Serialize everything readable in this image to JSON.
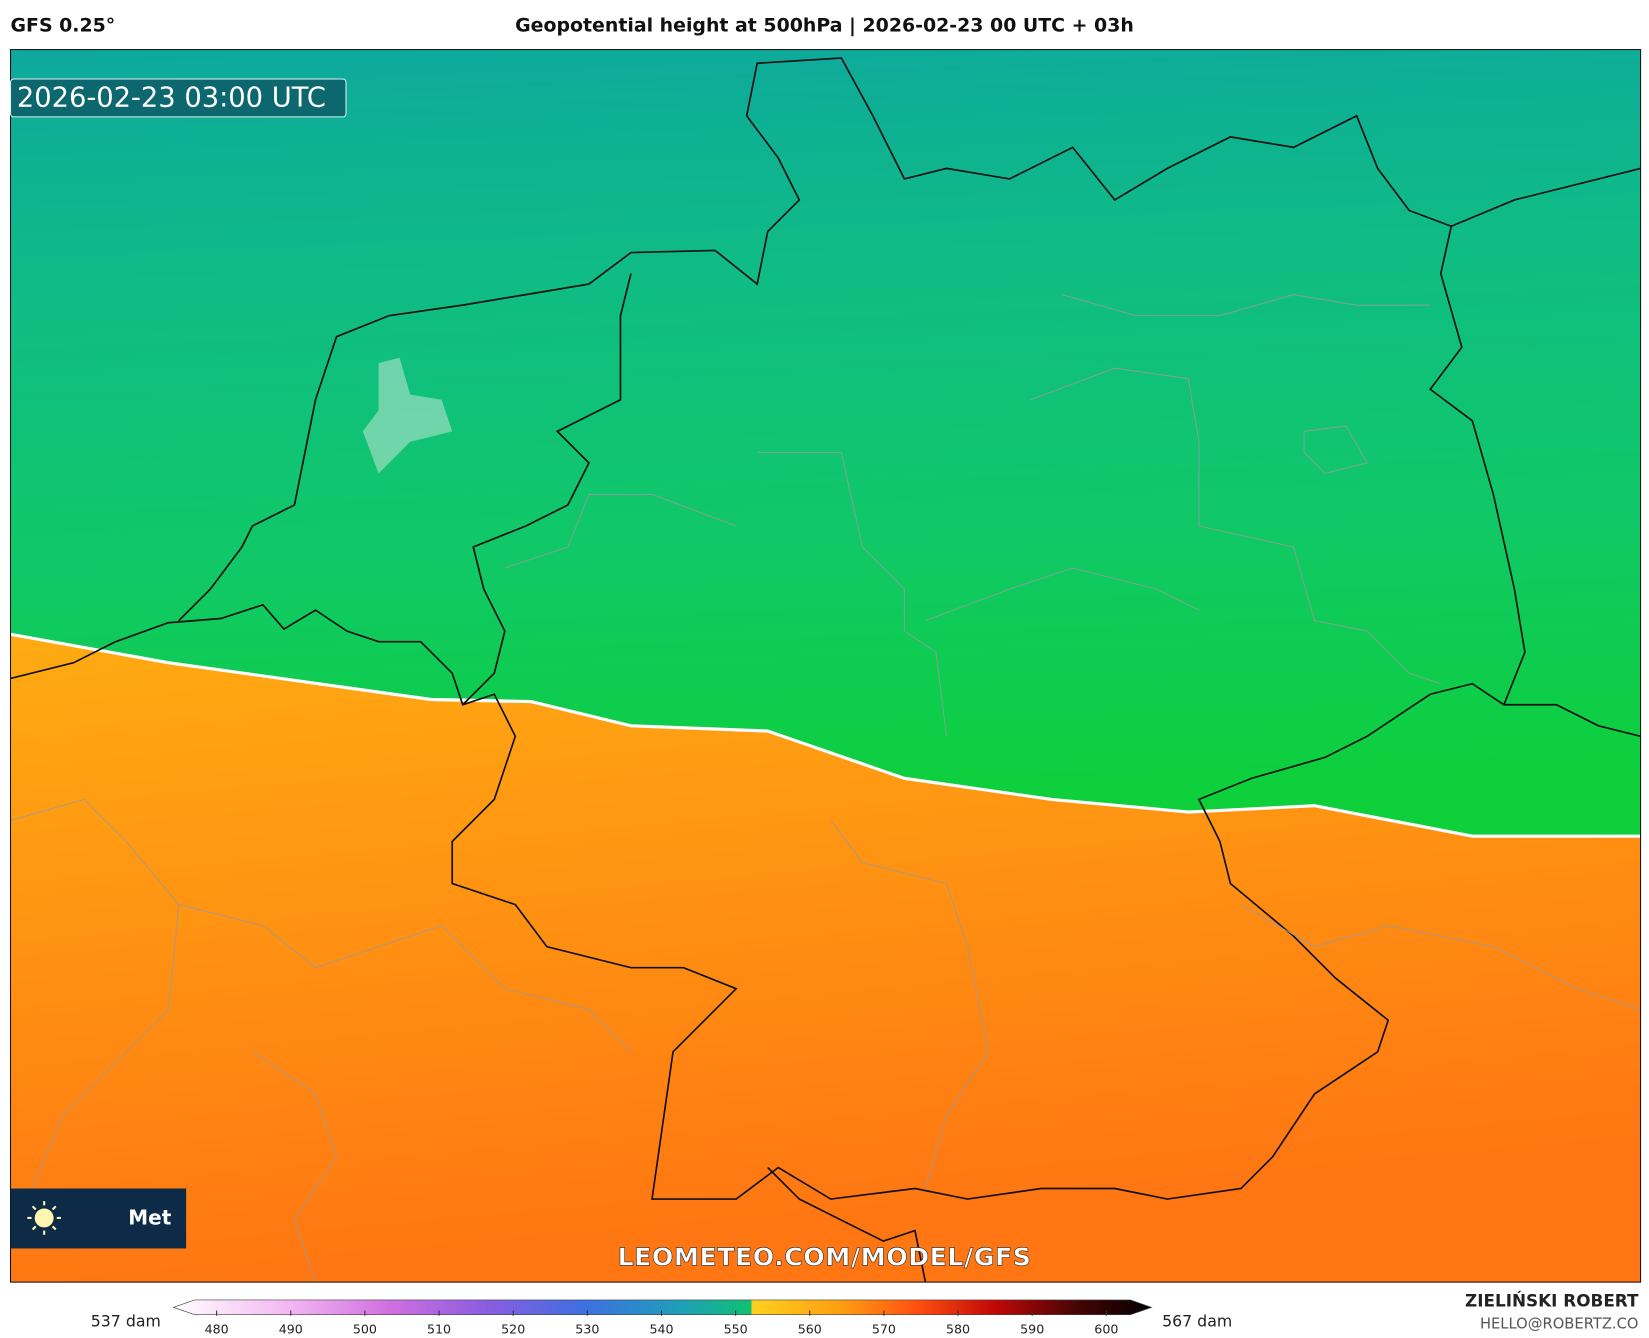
{
  "header": {
    "model": "GFS 0.25°",
    "title": "Geopotential height at 500hPa | 2026-02-23 00 UTC + 03h"
  },
  "map": {
    "valid_time": "2026-02-23 03:00 UTC",
    "watermark": "LEOMETEO.COM/MODEL/GFS",
    "logo_text": "Met"
  },
  "colorbar": {
    "min_label": "537 dam",
    "max_label": "567 dam",
    "ticks": [
      480,
      490,
      500,
      510,
      520,
      530,
      540,
      550,
      560,
      570,
      580,
      590,
      600
    ]
  },
  "footer": {
    "author": "ZIELIŃSKI ROBERT",
    "email": "HELLO@ROBERTZ.CO"
  }
}
